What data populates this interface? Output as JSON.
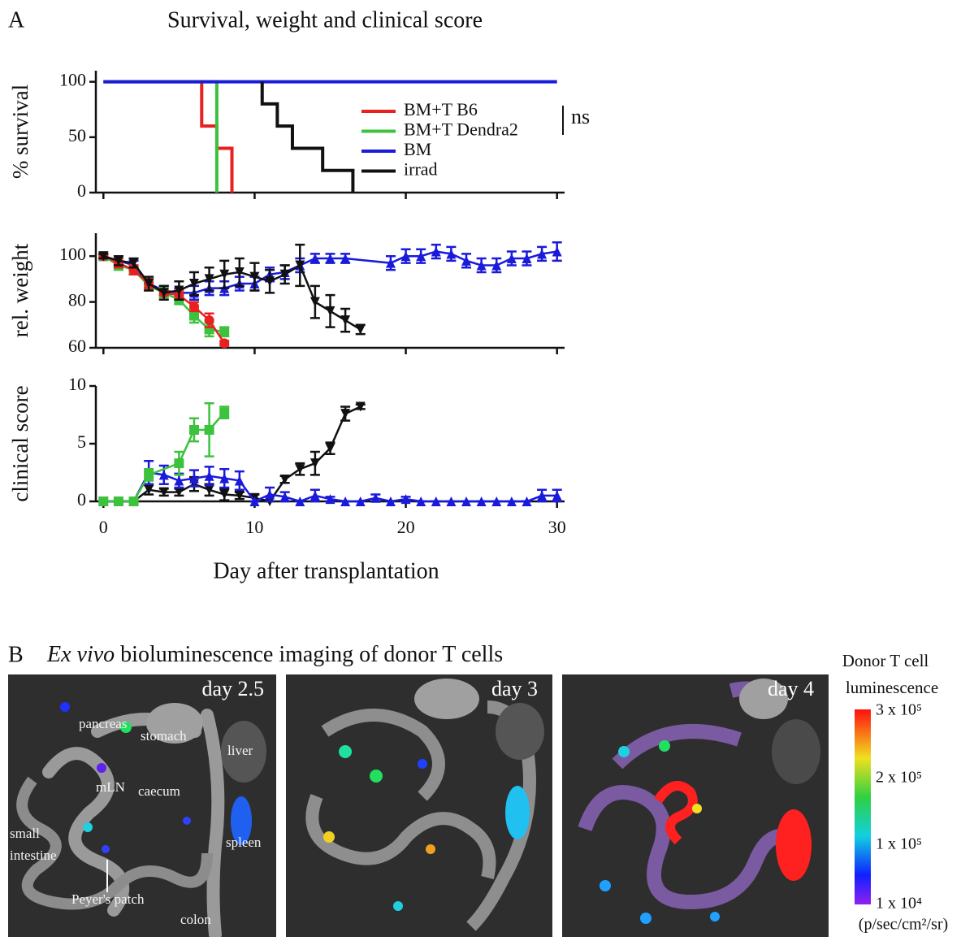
{
  "figure": {
    "panel_a_label": "A",
    "panel_a_title": "Survival,  weight and clinical  score",
    "panel_b_label": "B",
    "panel_b_title_italic": "Ex vivo",
    "panel_b_title": "bioluminescence imaging of donor T cells",
    "images": [
      {
        "label": "day 2.5",
        "organs": [
          "pancreas",
          "stomach",
          "liver",
          "mLN",
          "caecum",
          "small",
          "intestine",
          "spleen",
          "Peyer's patch",
          "colon"
        ]
      },
      {
        "label": "day 3"
      },
      {
        "label": "day 4"
      }
    ],
    "colorbar": {
      "title": [
        "Donor T cell",
        "luminescence"
      ],
      "labels": [
        "3 x 10⁵",
        "2 x 10⁵",
        "1 x 10⁵",
        "1 x 10⁴"
      ],
      "unit": "(p/sec/cm²/sr)"
    }
  },
  "chart_data": [
    {
      "type": "step",
      "ylabel": "% survival",
      "xlim": [
        -0.5,
        30.5
      ],
      "ylim": [
        0,
        110
      ],
      "yticks": [
        0,
        50,
        100
      ],
      "annotation": "ns",
      "series": [
        {
          "name": "BM+T B6",
          "color": "#e8201f",
          "x": [
            0,
            6.5,
            7.5,
            8.5
          ],
          "values": [
            100,
            60,
            40,
            0
          ]
        },
        {
          "name": "BM+T Dendra2",
          "color": "#3cc23c",
          "x": [
            0,
            7.5
          ],
          "values": [
            100,
            0
          ]
        },
        {
          "name": "BM",
          "color": "#1a1adb",
          "x": [
            0,
            30
          ],
          "values": [
            100,
            100
          ]
        },
        {
          "name": "irrad",
          "color": "#111111",
          "x": [
            10.5,
            10.5,
            11.5,
            12.5,
            14.5,
            16.5
          ],
          "values": [
            100,
            80,
            60,
            40,
            20,
            0
          ]
        }
      ]
    },
    {
      "type": "line",
      "ylabel": "rel. weight",
      "xlim": [
        -0.5,
        30.5
      ],
      "ylim": [
        60,
        110
      ],
      "yticks": [
        60,
        80,
        100
      ],
      "series": [
        {
          "color": "#1a1adb",
          "marker": "triangle-up",
          "x": [
            0,
            1,
            2,
            3,
            4,
            5,
            6,
            7,
            8,
            9,
            10,
            11,
            12,
            13,
            14,
            15,
            16,
            19,
            20,
            21,
            22,
            23,
            24,
            25,
            26,
            27,
            28,
            29,
            30
          ],
          "values": [
            100,
            98,
            96,
            88,
            85,
            84,
            84,
            86,
            86,
            88,
            88,
            92,
            93,
            96,
            99,
            99,
            99,
            97,
            100,
            100,
            102,
            101,
            98,
            96,
            96,
            99,
            99,
            101,
            102
          ],
          "errors": [
            1,
            2,
            2,
            2,
            2,
            2,
            3,
            3,
            3,
            3,
            3,
            3,
            3,
            3,
            2,
            2,
            2,
            3,
            3,
            3,
            3,
            3,
            3,
            3,
            3,
            3,
            3,
            3,
            4
          ]
        },
        {
          "color": "#3cc23c",
          "marker": "square",
          "x": [
            0,
            1,
            2,
            3,
            4,
            5,
            6,
            7,
            8
          ],
          "values": [
            100,
            96,
            94,
            87,
            84,
            81,
            74,
            68,
            67
          ],
          "errors": [
            1,
            2,
            2,
            2,
            2,
            2,
            3,
            3,
            2
          ]
        },
        {
          "color": "#e8201f",
          "marker": "circle",
          "x": [
            0,
            1,
            2,
            3,
            4,
            5,
            6,
            7,
            8
          ],
          "values": [
            100,
            97,
            94,
            88,
            84,
            83,
            78,
            72,
            62
          ],
          "errors": [
            1,
            2,
            2,
            2,
            1,
            2,
            2,
            3,
            1
          ]
        },
        {
          "color": "#111111",
          "marker": "triangle-down",
          "x": [
            0,
            1,
            2,
            3,
            4,
            5,
            6,
            7,
            8,
            9,
            10,
            11,
            12,
            13,
            14,
            15,
            16,
            17
          ],
          "values": [
            100,
            98,
            97,
            88,
            84,
            85,
            88,
            90,
            92,
            93,
            91,
            89,
            92,
            96,
            80,
            76,
            72,
            68
          ],
          "errors": [
            1,
            2,
            2,
            3,
            3,
            4,
            5,
            5,
            6,
            6,
            6,
            5,
            4,
            9,
            7,
            7,
            5,
            2
          ]
        }
      ]
    },
    {
      "type": "line",
      "ylabel": "clinical score",
      "xlabel": "Day after transplantation",
      "xlim": [
        -0.5,
        30.5
      ],
      "ylim": [
        0,
        10
      ],
      "yticks": [
        0,
        5,
        10
      ],
      "xticks": [
        0,
        10,
        20,
        30
      ],
      "series": [
        {
          "color": "#111111",
          "marker": "triangle-down",
          "x": [
            0,
            1,
            2,
            3,
            4,
            5,
            6,
            7,
            8,
            9,
            10,
            11,
            12,
            13,
            14,
            15,
            16,
            17
          ],
          "values": [
            0,
            0,
            0,
            1,
            0.8,
            0.8,
            1.5,
            1,
            0.6,
            0.5,
            0.3,
            0,
            1.9,
            2.8,
            3.3,
            4.6,
            7.6,
            8.2
          ],
          "errors": [
            0,
            0,
            0,
            0.4,
            0.3,
            0.3,
            0.6,
            0.5,
            0.5,
            0.3,
            0.3,
            0,
            0.3,
            0.5,
            1,
            0.5,
            0.6,
            0.2
          ]
        },
        {
          "color": "#1a1adb",
          "marker": "triangle-up",
          "x": [
            0,
            1,
            2,
            3,
            4,
            5,
            6,
            7,
            8,
            9,
            10,
            11,
            12,
            13,
            14,
            15,
            16,
            17,
            18,
            19,
            20,
            21,
            22,
            23,
            24,
            25,
            26,
            27,
            28,
            29,
            30
          ],
          "values": [
            0,
            0,
            0,
            2.5,
            2.3,
            1.8,
            2,
            2.2,
            2,
            1.8,
            0,
            0.6,
            0.4,
            0,
            0.5,
            0.2,
            0,
            0,
            0.3,
            0,
            0.2,
            0,
            0,
            0,
            0,
            0,
            0,
            0,
            0,
            0.5,
            0.5
          ],
          "errors": [
            0,
            0,
            0,
            1,
            0.8,
            0.6,
            0.7,
            0.8,
            0.8,
            0.8,
            0,
            0.6,
            0.4,
            0,
            0.5,
            0.2,
            0,
            0,
            0.3,
            0,
            0.2,
            0,
            0,
            0,
            0,
            0,
            0,
            0,
            0,
            0.5,
            0.5
          ]
        },
        {
          "color": "#3cc23c",
          "marker": "square",
          "x": [
            0,
            1,
            2,
            3,
            5,
            6,
            7,
            8
          ],
          "values": [
            0,
            0,
            0,
            2.3,
            3.3,
            6.2,
            6.2,
            7.7
          ],
          "errors": [
            0,
            0,
            0,
            0.5,
            1,
            1,
            2.3,
            0.5
          ]
        }
      ]
    }
  ]
}
